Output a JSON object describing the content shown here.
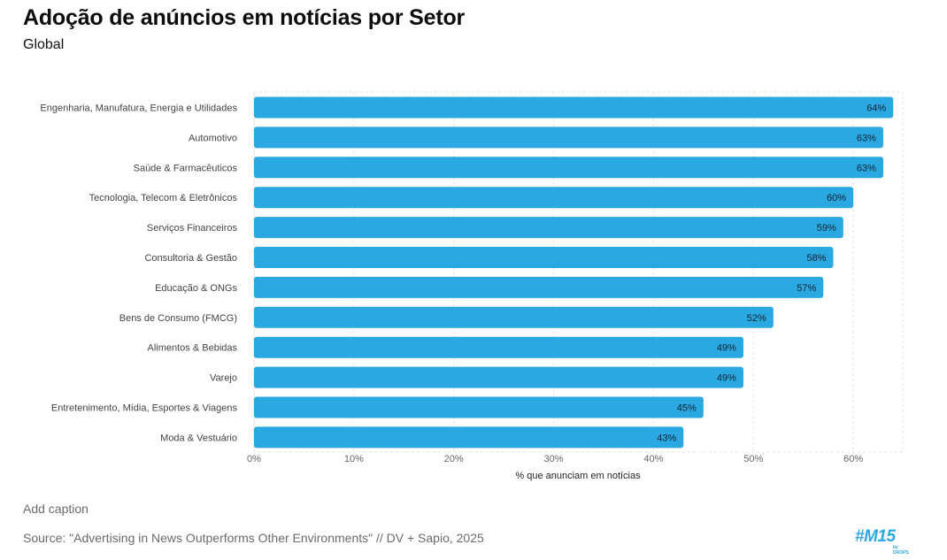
{
  "header": {
    "title": "Adoção de anúncios em notícias por Setor",
    "subtitle": "Global"
  },
  "chart_data": {
    "type": "bar",
    "orientation": "horizontal",
    "categories": [
      "Engenharia, Manufatura, Energia e Utilidades",
      "Automotivo",
      "Saúde & Farmacêuticos",
      "Tecnologia, Telecom & Eletrônicos",
      "Serviços Financeiros",
      "Consultoria & Gestão",
      "Educação & ONGs",
      "Bens de Consumo (FMCG)",
      "Alimentos & Bebidas",
      "Varejo",
      "Entretenimento, Mídia, Esportes & Viagens",
      "Moda & Vestuário"
    ],
    "values": [
      64,
      63,
      63,
      60,
      59,
      58,
      57,
      52,
      49,
      49,
      45,
      43
    ],
    "data_labels": [
      "64%",
      "63%",
      "63%",
      "60%",
      "59%",
      "58%",
      "57%",
      "52%",
      "49%",
      "49%",
      "45%",
      "43%"
    ],
    "xticks": [
      0,
      10,
      20,
      30,
      40,
      50,
      60
    ],
    "xtick_labels": [
      "0%",
      "10%",
      "20%",
      "30%",
      "40%",
      "50%",
      "60%"
    ],
    "xlim": [
      0,
      65
    ],
    "xlabel": "% que anunciam em notícias",
    "ylabel": "",
    "grid": true,
    "bar_color": "#2aa8e2"
  },
  "footer": {
    "caption": "Add caption",
    "source": "Source: \"Advertising in News Outperforms Other Environments\" // DV + Sapio, 2025",
    "logo_text": "#M15",
    "logo_subtext": "by DROPS"
  }
}
